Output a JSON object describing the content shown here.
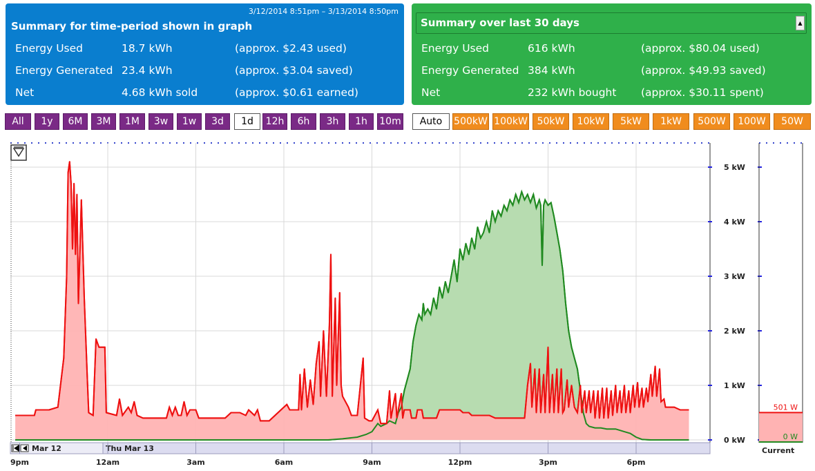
{
  "summary_graph": {
    "date_range": "3/12/2014 8:51pm – 3/13/2014 8:50pm",
    "title": "Summary for time-period shown in graph",
    "rows": [
      {
        "label": "Energy Used",
        "value": "18.7 kWh",
        "note": "(approx. $2.43 used)"
      },
      {
        "label": "Energy Generated",
        "value": "23.4 kWh",
        "note": "(approx. $3.04 saved)"
      },
      {
        "label": "Net",
        "value": "4.68 kWh sold",
        "note": "(approx. $0.61 earned)"
      }
    ]
  },
  "summary_30": {
    "selected": "Summary over last 30 days",
    "rows": [
      {
        "label": "Energy Used",
        "value": "616 kWh",
        "note": "(approx. $80.04 used)"
      },
      {
        "label": "Energy Generated",
        "value": "384 kWh",
        "note": "(approx. $49.93 saved)"
      },
      {
        "label": "Net",
        "value": "232 kWh bought",
        "note": "(approx. $30.11 spent)"
      }
    ]
  },
  "range_buttons": [
    "All",
    "1y",
    "6M",
    "3M",
    "1M",
    "3w",
    "1w",
    "3d",
    "1d",
    "12h",
    "6h",
    "3h",
    "1h",
    "10m"
  ],
  "range_active": "1d",
  "scale_buttons": [
    "Auto",
    "500kW",
    "100kW",
    "50kW",
    "10kW",
    "5kW",
    "1kW",
    "500W",
    "100W",
    "50W"
  ],
  "scale_active": "Auto",
  "nav": {
    "left_date": "Mar 12",
    "right_date": "Thu Mar 13"
  },
  "current": {
    "label": "Current",
    "used": "501 W",
    "generated": "0 W",
    "used_kw": 0.501,
    "generated_kw": 0
  },
  "colors": {
    "used_line": "#ee1111",
    "used_fill": "#ffb3b3",
    "gen_line": "#208a20",
    "gen_fill": "#b7dcb0",
    "panel_blue": "#0a7ecf",
    "panel_green": "#2fb04a",
    "range_btn": "#7a2a86",
    "scale_btn": "#f08c1e"
  },
  "chart_data": {
    "type": "area",
    "x_unit": "hours since 9pm (Mar 12 8:51pm – Mar 13 8:50pm)",
    "x_ticks": [
      "9pm",
      "12am",
      "3am",
      "6am",
      "9am",
      "12pm",
      "3pm",
      "6pm"
    ],
    "y_ticks": [
      "0 kW",
      "1 kW",
      "2 kW",
      "3 kW",
      "4 kW",
      "5 kW"
    ],
    "ylim": [
      0,
      5.5
    ],
    "series": [
      {
        "name": "Energy Used",
        "points": [
          [
            -0.15,
            0.45
          ],
          [
            0.5,
            0.45
          ],
          [
            0.55,
            0.55
          ],
          [
            1.0,
            0.55
          ],
          [
            1.3,
            0.6
          ],
          [
            1.5,
            1.5
          ],
          [
            1.6,
            3.0
          ],
          [
            1.65,
            4.9
          ],
          [
            1.7,
            5.1
          ],
          [
            1.75,
            4.7
          ],
          [
            1.8,
            3.5
          ],
          [
            1.85,
            4.7
          ],
          [
            1.9,
            3.4
          ],
          [
            1.95,
            4.5
          ],
          [
            2.0,
            2.5
          ],
          [
            2.1,
            4.4
          ],
          [
            2.2,
            2.6
          ],
          [
            2.3,
            1.2
          ],
          [
            2.35,
            0.5
          ],
          [
            2.5,
            0.45
          ],
          [
            2.6,
            1.85
          ],
          [
            2.7,
            1.7
          ],
          [
            2.9,
            1.7
          ],
          [
            2.95,
            0.5
          ],
          [
            3.3,
            0.45
          ],
          [
            3.4,
            0.75
          ],
          [
            3.5,
            0.45
          ],
          [
            3.7,
            0.6
          ],
          [
            3.8,
            0.5
          ],
          [
            3.9,
            0.7
          ],
          [
            4.0,
            0.45
          ],
          [
            4.2,
            0.4
          ],
          [
            5.0,
            0.4
          ],
          [
            5.1,
            0.6
          ],
          [
            5.2,
            0.45
          ],
          [
            5.3,
            0.6
          ],
          [
            5.4,
            0.45
          ],
          [
            5.5,
            0.45
          ],
          [
            5.6,
            0.7
          ],
          [
            5.7,
            0.45
          ],
          [
            5.8,
            0.55
          ],
          [
            6.0,
            0.55
          ],
          [
            6.1,
            0.4
          ],
          [
            7.0,
            0.4
          ],
          [
            7.2,
            0.5
          ],
          [
            7.5,
            0.5
          ],
          [
            7.7,
            0.45
          ],
          [
            7.8,
            0.55
          ],
          [
            8.0,
            0.45
          ],
          [
            8.1,
            0.55
          ],
          [
            8.2,
            0.35
          ],
          [
            8.5,
            0.35
          ],
          [
            8.7,
            0.45
          ],
          [
            8.9,
            0.55
          ],
          [
            9.1,
            0.65
          ],
          [
            9.2,
            0.55
          ],
          [
            9.5,
            0.55
          ],
          [
            9.55,
            1.2
          ],
          [
            9.6,
            0.55
          ],
          [
            9.7,
            1.3
          ],
          [
            9.8,
            0.6
          ],
          [
            9.9,
            1.1
          ],
          [
            10.0,
            0.65
          ],
          [
            10.1,
            1.4
          ],
          [
            10.2,
            1.8
          ],
          [
            10.25,
            0.8
          ],
          [
            10.35,
            2.0
          ],
          [
            10.45,
            0.8
          ],
          [
            10.55,
            2.1
          ],
          [
            10.6,
            3.4
          ],
          [
            10.65,
            0.8
          ],
          [
            10.75,
            2.6
          ],
          [
            10.8,
            1.0
          ],
          [
            10.9,
            2.7
          ],
          [
            10.95,
            1.0
          ],
          [
            11.0,
            0.8
          ],
          [
            11.2,
            0.6
          ],
          [
            11.3,
            0.45
          ],
          [
            11.5,
            0.45
          ],
          [
            11.7,
            1.5
          ],
          [
            11.75,
            0.4
          ],
          [
            11.9,
            0.35
          ],
          [
            12.0,
            0.35
          ],
          [
            12.2,
            0.55
          ],
          [
            12.3,
            0.3
          ],
          [
            12.5,
            0.3
          ],
          [
            12.6,
            0.9
          ],
          [
            12.65,
            0.4
          ],
          [
            12.8,
            0.85
          ],
          [
            12.85,
            0.4
          ],
          [
            13.0,
            0.85
          ],
          [
            13.05,
            0.4
          ],
          [
            13.1,
            0.55
          ],
          [
            13.3,
            0.55
          ],
          [
            13.35,
            0.4
          ],
          [
            13.5,
            0.4
          ],
          [
            13.55,
            0.55
          ],
          [
            13.7,
            0.55
          ],
          [
            13.75,
            0.4
          ],
          [
            14.2,
            0.4
          ],
          [
            14.3,
            0.55
          ],
          [
            15.0,
            0.55
          ],
          [
            15.1,
            0.5
          ],
          [
            15.3,
            0.5
          ],
          [
            15.4,
            0.45
          ],
          [
            16.0,
            0.45
          ],
          [
            16.2,
            0.4
          ],
          [
            17.0,
            0.4
          ],
          [
            17.2,
            0.4
          ],
          [
            17.3,
            1.0
          ],
          [
            17.4,
            1.4
          ],
          [
            17.45,
            0.6
          ],
          [
            17.55,
            1.3
          ],
          [
            17.6,
            0.5
          ],
          [
            17.7,
            1.3
          ],
          [
            17.75,
            0.5
          ],
          [
            17.85,
            1.2
          ],
          [
            17.9,
            0.5
          ],
          [
            18.0,
            1.7
          ],
          [
            18.05,
            0.5
          ],
          [
            18.15,
            1.2
          ],
          [
            18.2,
            0.5
          ],
          [
            18.3,
            1.3
          ],
          [
            18.35,
            0.5
          ],
          [
            18.45,
            1.3
          ],
          [
            18.5,
            0.5
          ],
          [
            18.55,
            0.55
          ],
          [
            18.65,
            1.1
          ],
          [
            18.7,
            0.6
          ],
          [
            18.8,
            1.0
          ],
          [
            18.9,
            0.6
          ],
          [
            19.0,
            0.5
          ],
          [
            19.1,
            1.0
          ],
          [
            19.15,
            0.5
          ],
          [
            19.25,
            0.9
          ],
          [
            19.3,
            0.5
          ],
          [
            19.4,
            0.9
          ],
          [
            19.45,
            0.5
          ],
          [
            19.55,
            0.9
          ],
          [
            19.6,
            0.4
          ],
          [
            19.7,
            0.9
          ],
          [
            19.75,
            0.4
          ],
          [
            19.85,
            0.95
          ],
          [
            19.9,
            0.4
          ],
          [
            20.0,
            0.95
          ],
          [
            20.05,
            0.4
          ],
          [
            20.15,
            0.9
          ],
          [
            20.2,
            0.45
          ],
          [
            20.3,
            1.0
          ],
          [
            20.35,
            0.5
          ],
          [
            20.45,
            0.9
          ],
          [
            20.5,
            0.5
          ],
          [
            20.6,
            1.0
          ],
          [
            20.65,
            0.5
          ],
          [
            20.75,
            0.9
          ],
          [
            20.8,
            0.5
          ],
          [
            20.9,
            1.0
          ],
          [
            20.95,
            0.6
          ],
          [
            21.05,
            1.05
          ],
          [
            21.1,
            0.6
          ],
          [
            21.2,
            0.95
          ],
          [
            21.25,
            0.6
          ],
          [
            21.35,
            0.95
          ],
          [
            21.4,
            0.7
          ],
          [
            21.5,
            1.2
          ],
          [
            21.55,
            0.8
          ],
          [
            21.65,
            1.35
          ],
          [
            21.7,
            0.8
          ],
          [
            21.8,
            1.3
          ],
          [
            21.85,
            0.7
          ],
          [
            21.95,
            0.75
          ],
          [
            22.0,
            0.6
          ],
          [
            22.3,
            0.6
          ],
          [
            22.5,
            0.55
          ],
          [
            22.8,
            0.55
          ]
        ]
      },
      {
        "name": "Energy Generated",
        "points": [
          [
            -0.15,
            0
          ],
          [
            10.5,
            0
          ],
          [
            11.0,
            0.02
          ],
          [
            11.5,
            0.05
          ],
          [
            11.8,
            0.1
          ],
          [
            12.0,
            0.15
          ],
          [
            12.2,
            0.3
          ],
          [
            12.3,
            0.25
          ],
          [
            12.5,
            0.3
          ],
          [
            12.6,
            0.35
          ],
          [
            12.8,
            0.3
          ],
          [
            12.9,
            0.5
          ],
          [
            13.0,
            0.6
          ],
          [
            13.1,
            0.9
          ],
          [
            13.3,
            1.3
          ],
          [
            13.4,
            1.8
          ],
          [
            13.5,
            2.1
          ],
          [
            13.6,
            2.3
          ],
          [
            13.7,
            2.2
          ],
          [
            13.75,
            2.5
          ],
          [
            13.8,
            2.3
          ],
          [
            13.9,
            2.4
          ],
          [
            14.0,
            2.3
          ],
          [
            14.1,
            2.6
          ],
          [
            14.2,
            2.4
          ],
          [
            14.3,
            2.8
          ],
          [
            14.4,
            2.6
          ],
          [
            14.5,
            2.9
          ],
          [
            14.6,
            2.7
          ],
          [
            14.7,
            3.0
          ],
          [
            14.8,
            3.3
          ],
          [
            14.9,
            2.9
          ],
          [
            15.0,
            3.5
          ],
          [
            15.1,
            3.3
          ],
          [
            15.2,
            3.6
          ],
          [
            15.3,
            3.4
          ],
          [
            15.4,
            3.7
          ],
          [
            15.5,
            3.5
          ],
          [
            15.6,
            3.9
          ],
          [
            15.7,
            3.7
          ],
          [
            15.8,
            3.8
          ],
          [
            15.9,
            4.0
          ],
          [
            16.0,
            3.8
          ],
          [
            16.1,
            4.2
          ],
          [
            16.2,
            4.0
          ],
          [
            16.3,
            4.2
          ],
          [
            16.4,
            4.1
          ],
          [
            16.5,
            4.3
          ],
          [
            16.6,
            4.2
          ],
          [
            16.7,
            4.4
          ],
          [
            16.8,
            4.3
          ],
          [
            16.9,
            4.5
          ],
          [
            17.0,
            4.35
          ],
          [
            17.1,
            4.55
          ],
          [
            17.2,
            4.4
          ],
          [
            17.3,
            4.5
          ],
          [
            17.4,
            4.35
          ],
          [
            17.5,
            4.5
          ],
          [
            17.6,
            4.25
          ],
          [
            17.7,
            4.4
          ],
          [
            17.75,
            4.3
          ],
          [
            17.8,
            3.2
          ],
          [
            17.85,
            4.3
          ],
          [
            17.9,
            4.4
          ],
          [
            18.0,
            4.3
          ],
          [
            18.1,
            4.35
          ],
          [
            18.2,
            4.1
          ],
          [
            18.3,
            3.8
          ],
          [
            18.4,
            3.5
          ],
          [
            18.5,
            3.1
          ],
          [
            18.6,
            2.5
          ],
          [
            18.7,
            2.0
          ],
          [
            18.8,
            1.7
          ],
          [
            18.9,
            1.5
          ],
          [
            19.0,
            1.3
          ],
          [
            19.1,
            0.9
          ],
          [
            19.2,
            0.5
          ],
          [
            19.3,
            0.3
          ],
          [
            19.4,
            0.25
          ],
          [
            19.6,
            0.22
          ],
          [
            19.8,
            0.22
          ],
          [
            20.0,
            0.2
          ],
          [
            20.3,
            0.2
          ],
          [
            20.6,
            0.15
          ],
          [
            20.8,
            0.12
          ],
          [
            21.0,
            0.05
          ],
          [
            21.2,
            0.01
          ],
          [
            21.5,
            0
          ],
          [
            22.8,
            0
          ]
        ]
      }
    ]
  }
}
